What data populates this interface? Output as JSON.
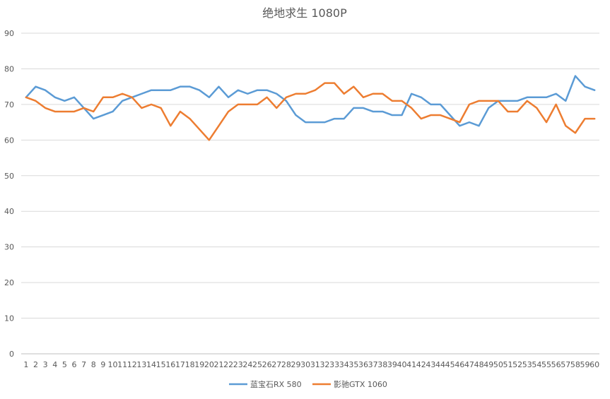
{
  "chart_data": {
    "type": "line",
    "title": "绝地求生 1080P",
    "xlabel": "",
    "ylabel": "",
    "ylim": [
      0,
      90
    ],
    "yticks": [
      0,
      10,
      20,
      30,
      40,
      50,
      60,
      70,
      80,
      90
    ],
    "grid": "horizontal",
    "legend": "bottom",
    "x": [
      1,
      2,
      3,
      4,
      5,
      6,
      7,
      8,
      9,
      10,
      11,
      12,
      13,
      14,
      15,
      16,
      17,
      18,
      19,
      20,
      21,
      22,
      23,
      24,
      25,
      26,
      27,
      28,
      29,
      30,
      31,
      32,
      33,
      34,
      35,
      36,
      37,
      38,
      39,
      40,
      41,
      42,
      43,
      44,
      45,
      46,
      47,
      48,
      49,
      50,
      51,
      52,
      53,
      54,
      55,
      56,
      57,
      58,
      59,
      60
    ],
    "series": [
      {
        "name": "蓝宝石RX 580",
        "color": "#5b9bd5",
        "values": [
          72,
          75,
          74,
          72,
          71,
          72,
          69,
          66,
          67,
          68,
          71,
          72,
          73,
          74,
          74,
          74,
          75,
          75,
          74,
          72,
          75,
          72,
          74,
          73,
          74,
          74,
          73,
          71,
          67,
          65,
          65,
          65,
          66,
          66,
          69,
          69,
          68,
          68,
          67,
          67,
          73,
          72,
          70,
          70,
          67,
          64,
          65,
          64,
          69,
          71,
          71,
          71,
          72,
          72,
          72,
          73,
          71,
          78,
          75,
          74
        ]
      },
      {
        "name": "影驰GTX 1060",
        "color": "#ed7d31",
        "values": [
          72,
          71,
          69,
          68,
          68,
          68,
          69,
          68,
          72,
          72,
          73,
          72,
          69,
          70,
          69,
          64,
          68,
          66,
          63,
          60,
          64,
          68,
          70,
          70,
          70,
          72,
          69,
          72,
          73,
          73,
          74,
          76,
          76,
          73,
          75,
          72,
          73,
          73,
          71,
          71,
          69,
          66,
          67,
          67,
          66,
          65,
          70,
          71,
          71,
          71,
          68,
          68,
          71,
          69,
          65,
          70,
          64,
          62,
          66,
          66
        ]
      }
    ]
  }
}
